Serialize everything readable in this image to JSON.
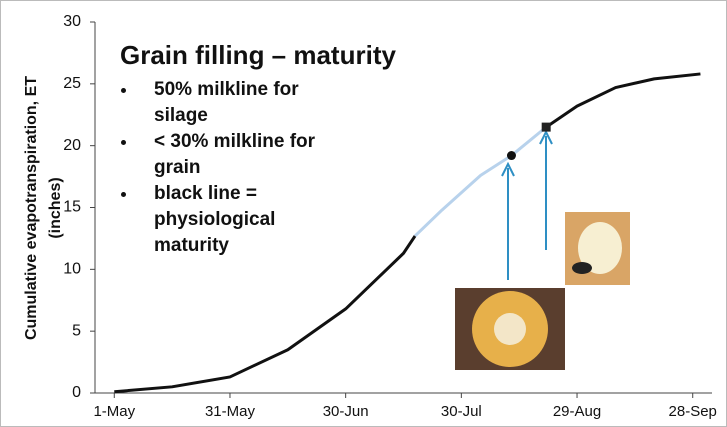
{
  "chart_data": {
    "type": "line",
    "y_label": [
      "Cumulative evapotranspiration, ET",
      "(inches)"
    ],
    "annotation": {
      "title": "Grain filling – maturity",
      "bullets": [
        "50% milkline for silage",
        "< 30% milkline for grain",
        "black line = physiological maturity"
      ]
    },
    "x": [
      0,
      15,
      30,
      45,
      60,
      75,
      78,
      85,
      95,
      103,
      112,
      120,
      130,
      140,
      152
    ],
    "series": [
      {
        "color": "#111111",
        "values": [
          0.1,
          0.5,
          1.3,
          3.5,
          6.8,
          11.3,
          12.7,
          null,
          null,
          null,
          21.5,
          23.2,
          24.7,
          25.4,
          25.8
        ]
      },
      {
        "color": "#b8d2ec",
        "values": [
          null,
          null,
          null,
          null,
          null,
          null,
          12.7,
          14.8,
          17.6,
          19.2,
          21.5,
          null,
          null,
          null,
          null
        ]
      }
    ],
    "points": [
      {
        "x": 103,
        "y": 19.2,
        "shape": "circle",
        "color": "#111111"
      },
      {
        "x": 112,
        "y": 21.5,
        "shape": "square",
        "color": "#222222"
      }
    ],
    "xlim": [
      -5,
      155
    ],
    "xticks": [
      {
        "value": 0,
        "label": "1-May"
      },
      {
        "value": 30,
        "label": "31-May"
      },
      {
        "value": 60,
        "label": "30-Jun"
      },
      {
        "value": 90,
        "label": "30-Jul"
      },
      {
        "value": 120,
        "label": "29-Aug"
      },
      {
        "value": 150,
        "label": "28-Sep"
      }
    ],
    "ylim": [
      0,
      30
    ],
    "yticks": [
      0,
      5,
      10,
      15,
      20,
      25,
      30
    ],
    "grid": false
  }
}
